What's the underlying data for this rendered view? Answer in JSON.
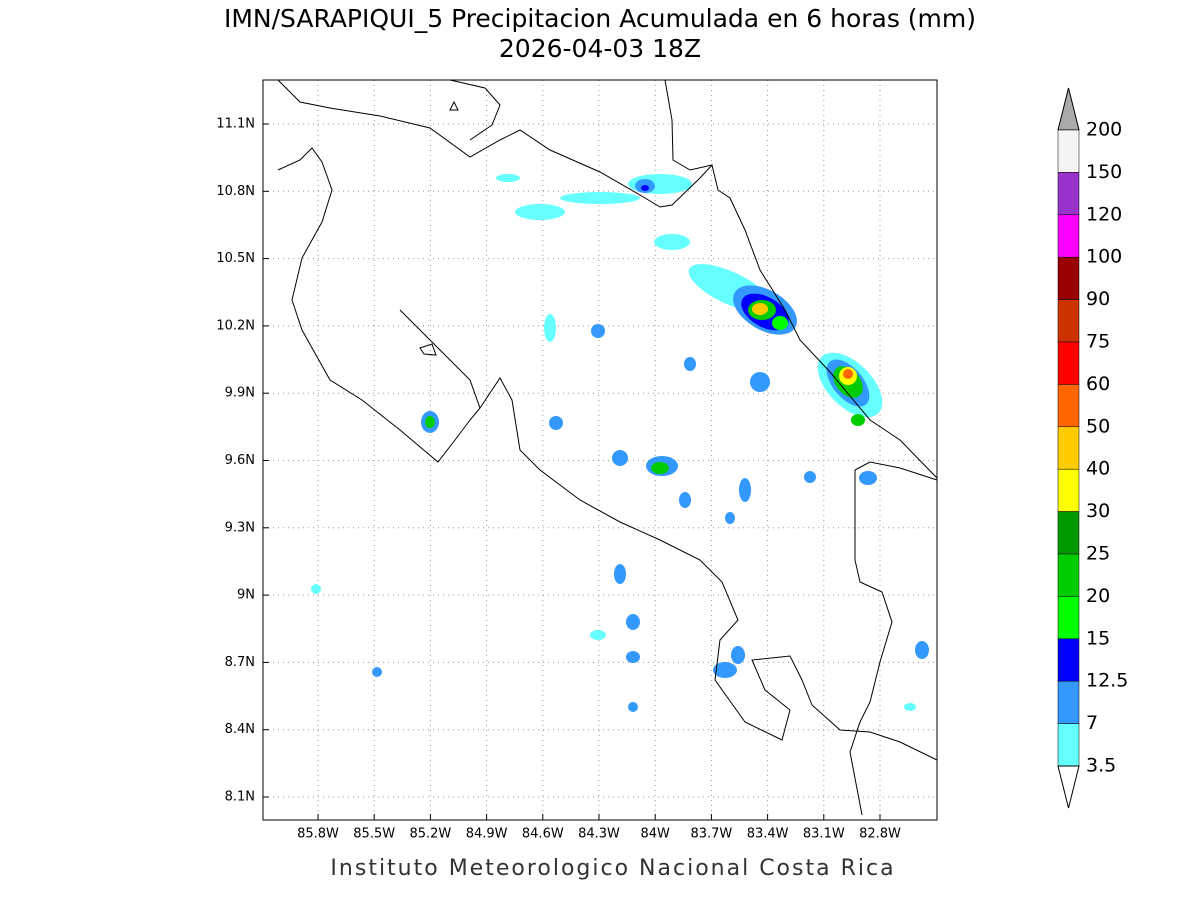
{
  "map": {
    "title": "IMN/SARAPIQUI_5 Precipitacion Acumulada en 6 horas (mm)",
    "subtitle": "2026-04-03 18Z",
    "lon_ticks": [
      "85.8W",
      "85.5W",
      "85.2W",
      "84.9W",
      "84.6W",
      "84.3W",
      "84W",
      "83.7W",
      "83.4W",
      "83.1W",
      "82.8W"
    ],
    "lat_ticks": [
      "11.1N",
      "10.8N",
      "10.5N",
      "10.2N",
      "9.9N",
      "9.6N",
      "9.3N",
      "9N",
      "8.7N",
      "8.4N",
      "8.1N"
    ],
    "footer": "Instituto Meteorologico Nacional Costa Rica"
  },
  "colorbar": {
    "over_color": "#aaaaaa",
    "labels": [
      "200",
      "150",
      "120",
      "100",
      "90",
      "75",
      "60",
      "50",
      "40",
      "30",
      "25",
      "20",
      "15",
      "12.5",
      "7",
      "3.5"
    ],
    "colors": [
      "#f4f4f4",
      "#9933cc",
      "#ff00ff",
      "#990000",
      "#cc3300",
      "#ff0000",
      "#ff6600",
      "#ffcc00",
      "#ffff00",
      "#009900",
      "#00cc00",
      "#00ff00",
      "#0000ff",
      "#3399ff",
      "#66ffff"
    ],
    "under_color": "#ffffff"
  }
}
